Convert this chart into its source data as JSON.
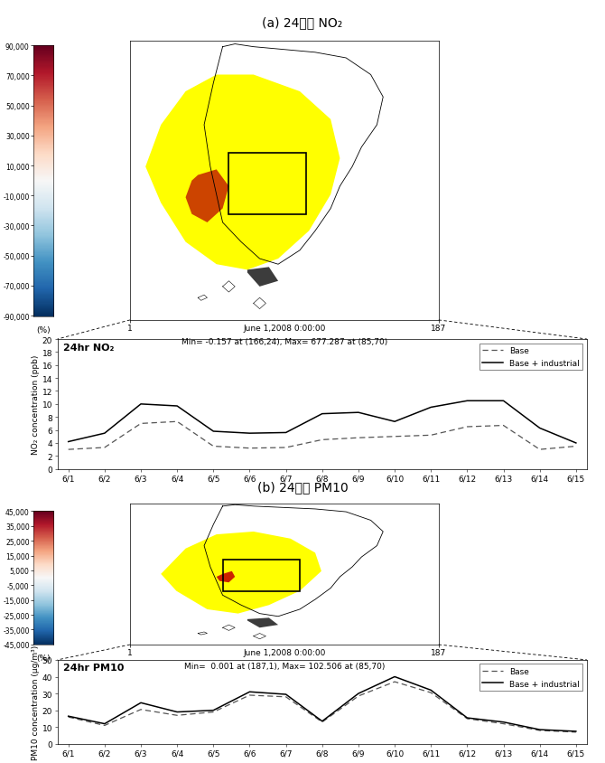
{
  "title_a": "(a) 24시간 NO₂",
  "title_b": "(b) 24시간 PM10",
  "no2_base": [
    3.0,
    3.3,
    7.0,
    7.3,
    3.5,
    3.2,
    3.3,
    4.5,
    4.8,
    5.0,
    5.2,
    6.5,
    6.7,
    3.0,
    3.5
  ],
  "no2_industrial": [
    4.2,
    5.5,
    10.0,
    9.7,
    5.8,
    5.5,
    5.6,
    8.5,
    8.7,
    7.3,
    9.5,
    10.5,
    10.5,
    6.3,
    4.0
  ],
  "no2_xlabels": [
    "6/1",
    "6/2",
    "6/3",
    "6/4",
    "6/5",
    "6/6",
    "6/7",
    "6/8",
    "6/9",
    "6/10",
    "6/11",
    "6/12",
    "6/13",
    "6/14",
    "6/15"
  ],
  "no2_ylabel": "NO₂ concentration (ppb)",
  "no2_ylim": [
    0,
    20
  ],
  "no2_yticks": [
    0,
    2,
    4,
    6,
    8,
    10,
    12,
    14,
    16,
    18,
    20
  ],
  "no2_label": "24hr NO₂",
  "no2_colorbar_ticks": [
    "90,000",
    "70,000",
    "50,000",
    "30,000",
    "10,000",
    "-10,000",
    "-30,000",
    "-50,000",
    "-70,000",
    "-90,000"
  ],
  "no2_colorbar_values": [
    90000,
    70000,
    50000,
    30000,
    10000,
    -10000,
    -30000,
    -50000,
    -70000,
    -90000
  ],
  "no2_map_caption1": "June 1,2008 0:00:00",
  "no2_map_caption2": "Min= -0.157 at (166,24), Max= 677.287 at (85,70)",
  "pm10_base": [
    16.0,
    11.0,
    20.5,
    17.0,
    19.0,
    29.0,
    28.0,
    13.0,
    28.5,
    37.0,
    30.5,
    15.0,
    12.0,
    8.0,
    7.0
  ],
  "pm10_industrial": [
    16.5,
    12.0,
    24.5,
    19.0,
    20.0,
    31.0,
    29.5,
    13.5,
    30.0,
    40.0,
    32.0,
    15.5,
    13.0,
    8.5,
    7.5
  ],
  "pm10_xlabels": [
    "6/1",
    "6/2",
    "6/3",
    "6/4",
    "6/5",
    "6/6",
    "6/7",
    "6/8",
    "6/9",
    "6/10",
    "6/11",
    "6/12",
    "6/13",
    "6/14",
    "6/15"
  ],
  "pm10_ylabel": "PM10 concentration (μg/m³)",
  "pm10_ylim": [
    0,
    50
  ],
  "pm10_yticks": [
    0,
    10,
    20,
    30,
    40,
    50
  ],
  "pm10_label": "24hr PM10",
  "pm10_colorbar_ticks": [
    "45,000",
    "35,000",
    "25,000",
    "15,000",
    "5,000",
    "-5,000",
    "-15,000",
    "-25,000",
    "-35,000",
    "-45,000"
  ],
  "pm10_colorbar_values": [
    45000,
    35000,
    25000,
    15000,
    5000,
    -5000,
    -15000,
    -25000,
    -35000,
    -45000
  ],
  "pm10_map_caption1": "June 1,2008 0:00:00",
  "pm10_map_caption2": "Min=  0.001 at (187,1), Max= 102.506 at (85,70)",
  "legend_base": "Base",
  "legend_industrial": "Base + industrial",
  "colorbar_label": "(%)",
  "background_color": "#ffffff"
}
